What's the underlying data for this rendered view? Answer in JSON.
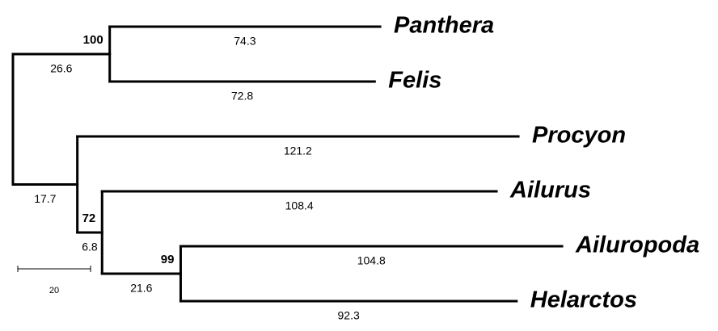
{
  "tree": {
    "children": [
      {
        "length": 26.6,
        "support": 100,
        "children": [
          {
            "label": "Panthera",
            "length": 74.3
          },
          {
            "label": "Felis",
            "length": 72.8
          }
        ]
      },
      {
        "length": 17.7,
        "children": [
          {
            "label": "Procyon",
            "length": 121.2
          },
          {
            "length": 6.8,
            "support": 72,
            "children": [
              {
                "label": "Ailurus",
                "length": 108.4
              },
              {
                "length": 21.6,
                "support": 99,
                "children": [
                  {
                    "label": "Ailuropoda",
                    "length": 104.8
                  },
                  {
                    "label": "Helarctos",
                    "length": 92.3
                  }
                ]
              }
            ]
          }
        ]
      }
    ]
  },
  "scale_bar": {
    "length": 20
  }
}
